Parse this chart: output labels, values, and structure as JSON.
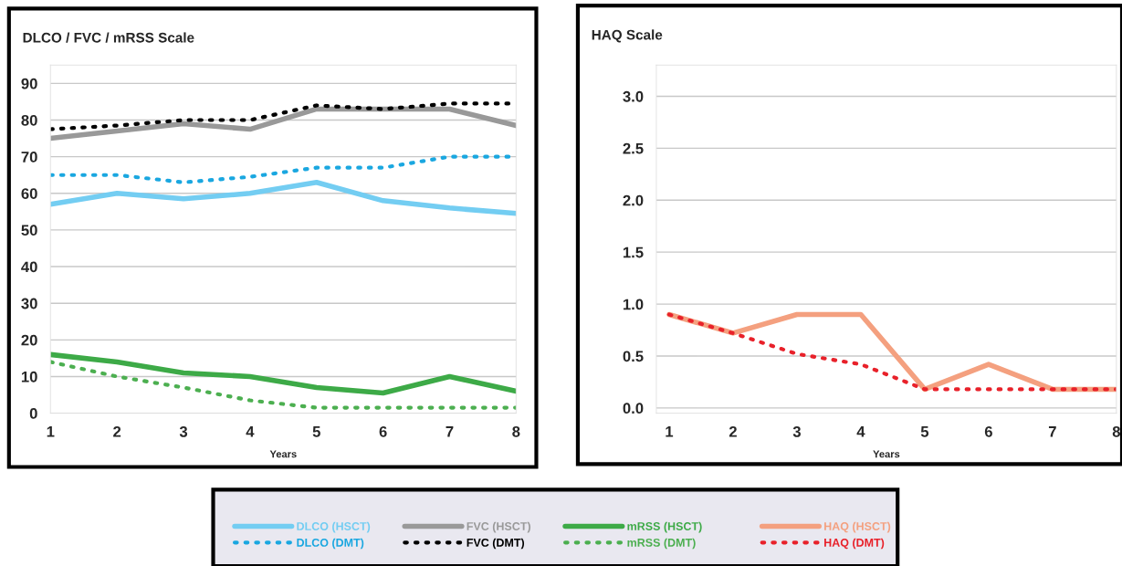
{
  "chart_data": [
    {
      "type": "line",
      "title": "DLCO / FVC / mRSS Scale",
      "xlabel": "Years",
      "x": [
        1,
        2,
        3,
        4,
        5,
        6,
        7,
        8
      ],
      "xlim": [
        1,
        8
      ],
      "xticks": [
        1,
        2,
        3,
        4,
        5,
        6,
        7,
        8
      ],
      "ylim": [
        0,
        95
      ],
      "yticks": [
        0,
        10,
        20,
        30,
        40,
        50,
        60,
        70,
        80,
        90
      ],
      "grid": "y",
      "legend": "bottom",
      "marker": "none",
      "series": [
        {
          "name": "DLCO (HSCT)",
          "color": "#73cdf2",
          "line_style": "solid",
          "values": [
            57,
            60,
            58.5,
            60,
            63,
            58,
            56,
            54.5
          ]
        },
        {
          "name": "DLCO (DMT)",
          "color": "#1aa7e0",
          "line_style": "dotted",
          "values": [
            65,
            65,
            63,
            64.5,
            67,
            67,
            70,
            70
          ]
        },
        {
          "name": "FVC (HSCT)",
          "color": "#999999",
          "line_style": "solid",
          "values": [
            75,
            77,
            79,
            77.5,
            83,
            83,
            83,
            78.5
          ]
        },
        {
          "name": "FVC (DMT)",
          "color": "#000000",
          "line_style": "dotted",
          "values": [
            77.5,
            78.5,
            80,
            80,
            84,
            83,
            84.5,
            84.5
          ]
        },
        {
          "name": "mRSS (HSCT)",
          "color": "#3daa47",
          "line_style": "solid",
          "values": [
            16,
            14,
            11,
            10,
            7,
            5.5,
            10,
            6
          ]
        },
        {
          "name": "mRSS (DMT)",
          "color": "#4caf50",
          "line_style": "dotted",
          "values": [
            14,
            10,
            7,
            3.5,
            1.5,
            1.5,
            1.5,
            1.5
          ]
        }
      ]
    },
    {
      "type": "line",
      "title": "HAQ Scale",
      "xlabel": "Years",
      "x": [
        1,
        2,
        3,
        4,
        5,
        6,
        7,
        8
      ],
      "xlim": [
        0.8,
        8
      ],
      "xticks": [
        1,
        2,
        3,
        4,
        5,
        6,
        7,
        8
      ],
      "ylim": [
        -0.05,
        3.3
      ],
      "yticks": [
        {
          "value": 0,
          "label": "0.0"
        },
        0.5,
        {
          "value": 1,
          "label": "1.0"
        },
        1.5,
        {
          "value": 2,
          "label": "2.0"
        },
        2.5,
        {
          "value": 3,
          "label": "3.0"
        }
      ],
      "grid": "y",
      "legend": "bottom",
      "marker": "none",
      "series": [
        {
          "name": "HAQ (HSCT)",
          "color": "#f4a07f",
          "line_style": "solid",
          "values": [
            0.9,
            0.72,
            0.9,
            0.9,
            0.18,
            0.42,
            0.18,
            0.18
          ]
        },
        {
          "name": "HAQ (DMT)",
          "color": "#e8212a",
          "line_style": "dotted",
          "values": [
            0.9,
            0.72,
            0.52,
            0.42,
            0.18,
            0.18,
            0.18,
            0.18
          ]
        }
      ]
    }
  ]
}
